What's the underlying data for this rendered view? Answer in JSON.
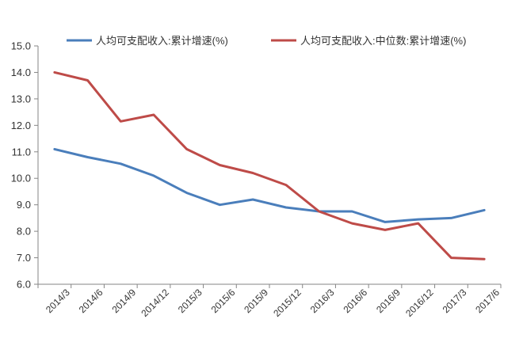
{
  "chart_data": {
    "type": "line",
    "categories": [
      "2014/3",
      "2014/6",
      "2014/9",
      "2014/12",
      "2015/3",
      "2015/6",
      "2015/9",
      "2015/12",
      "2016/3",
      "2016/6",
      "2016/9",
      "2016/12",
      "2017/3",
      "2017/6"
    ],
    "series": [
      {
        "name": "人均可支配收入:累计增速(%)",
        "color": "#4a7ebb",
        "values": [
          11.1,
          10.8,
          10.55,
          10.1,
          9.45,
          9.0,
          9.2,
          8.9,
          8.75,
          8.75,
          8.35,
          8.45,
          8.5,
          8.8
        ]
      },
      {
        "name": "人均可支配收入:中位数:累计增速(%)",
        "color": "#be4b48",
        "values": [
          14.0,
          13.7,
          12.15,
          12.4,
          11.1,
          10.5,
          10.2,
          9.75,
          8.75,
          8.3,
          8.05,
          8.3,
          7.0,
          6.95
        ]
      }
    ],
    "ylim": [
      6.0,
      15.0
    ],
    "yticks": [
      "6.0",
      "7.0",
      "8.0",
      "9.0",
      "10.0",
      "11.0",
      "12.0",
      "13.0",
      "14.0",
      "15.0"
    ],
    "grid": false,
    "legend": "top"
  }
}
